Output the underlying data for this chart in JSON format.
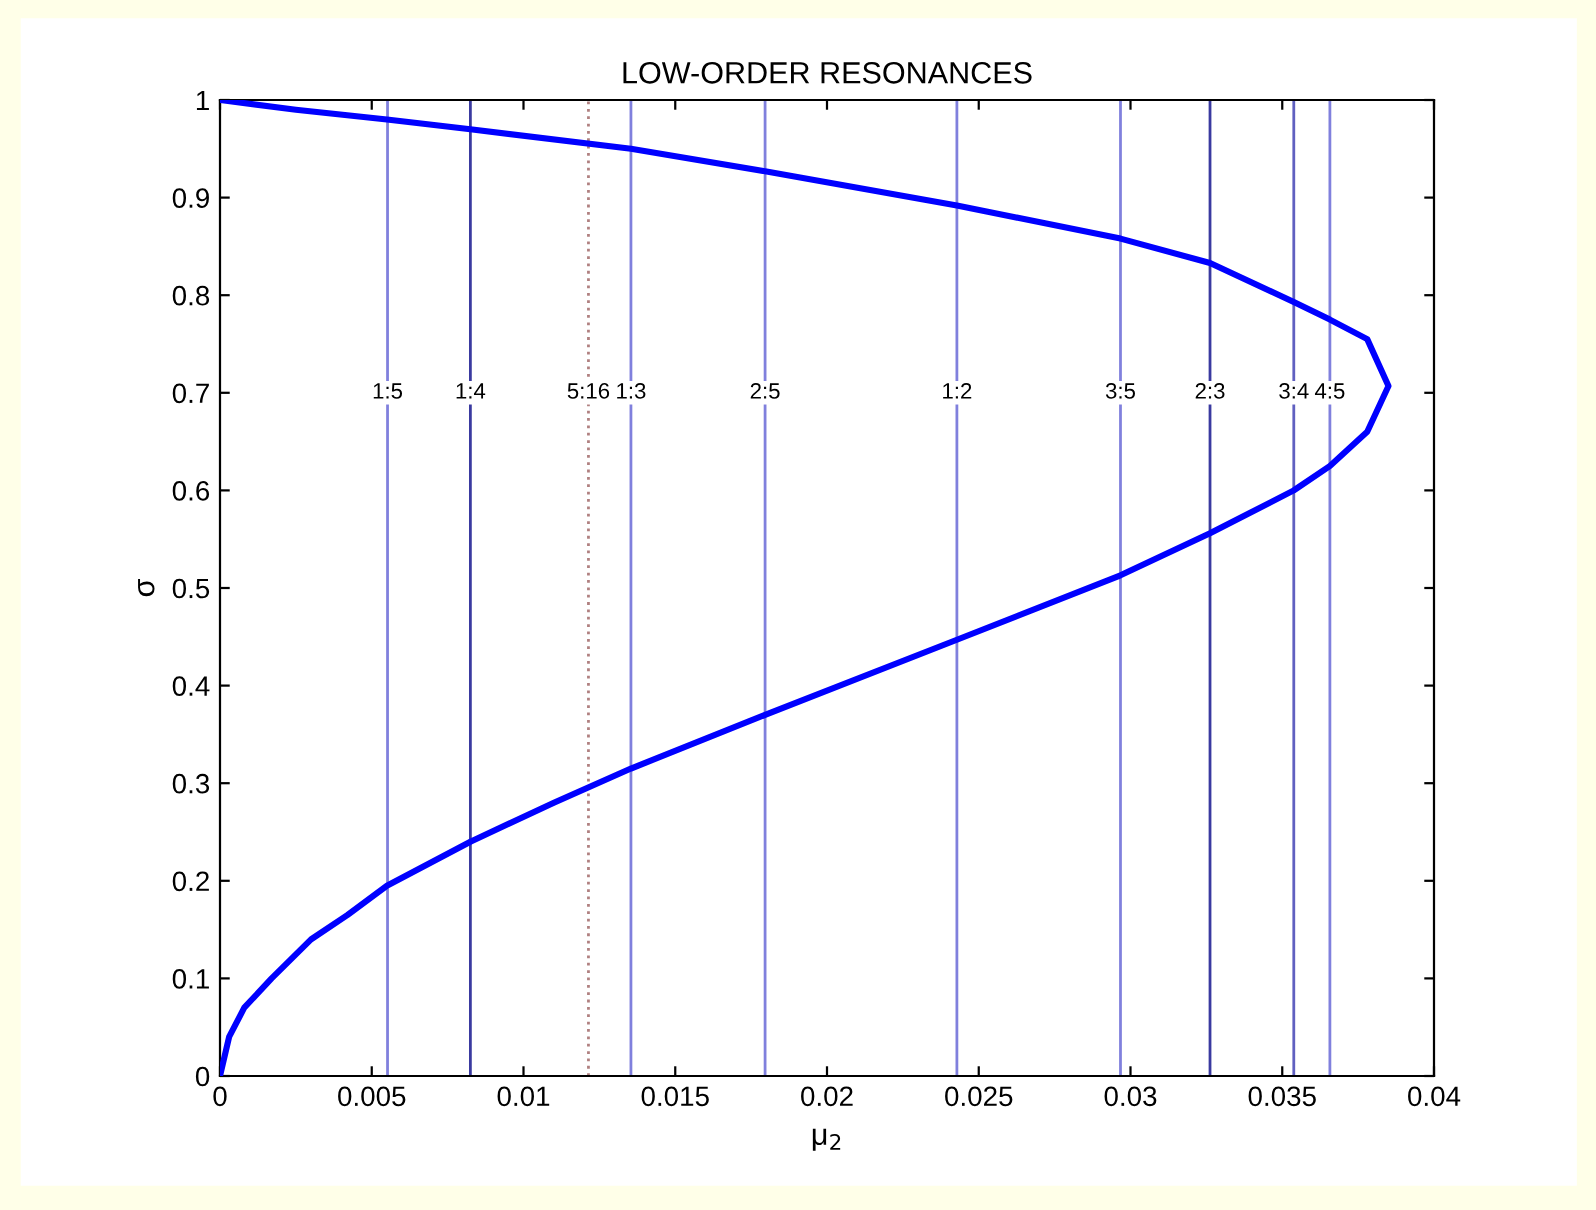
{
  "chart_data": {
    "type": "line",
    "title": "LOW-ORDER RESONANCES",
    "xlabel": "μ$_{2}$",
    "ylabel": "σ",
    "series": [
      {
        "color": "#0000ff",
        "x": [
          0,
          0.0003,
          0.0008,
          0.0017,
          0.003,
          0.0042,
          0.0055,
          0.00825,
          0.011,
          0.01354,
          0.01796,
          0.02428,
          0.02967,
          0.03262,
          0.03538,
          0.03657,
          0.0378,
          0.0385,
          0.0378,
          0.03657,
          0.03538,
          0.03262,
          0.02967,
          0.02428,
          0.01796,
          0.01354,
          0.00825,
          0.0055,
          0.0025,
          0
        ],
        "values": [
          0,
          0.04,
          0.07,
          0.1,
          0.14,
          0.165,
          0.195,
          0.24,
          0.28,
          0.315,
          0.37,
          0.447,
          0.513,
          0.556,
          0.6,
          0.625,
          0.66,
          0.707,
          0.755,
          0.775,
          0.793,
          0.833,
          0.858,
          0.892,
          0.927,
          0.95,
          0.97,
          0.98,
          0.99,
          1
        ]
      }
    ],
    "xlim": [
      0,
      0.04
    ],
    "ylim": [
      0,
      1
    ],
    "xticks": [
      0,
      0.005,
      0.01,
      0.015,
      0.02,
      0.025,
      0.03,
      0.035,
      0.04
    ],
    "yticks": [
      0,
      0.1,
      0.2,
      0.3,
      0.4,
      0.5,
      0.6,
      0.7,
      0.8,
      0.9,
      1
    ],
    "grid": false,
    "legend": false,
    "ref_lines": [
      {
        "axis": "x",
        "value": 0.00552,
        "color": "#8080dd"
      },
      {
        "axis": "x",
        "value": 0.00825,
        "color": "#3a3aa0"
      },
      {
        "axis": "x",
        "value": 0.01214,
        "color": "#b08080",
        "line_style": "dotted"
      },
      {
        "axis": "x",
        "value": 0.01354,
        "color": "#8080dd"
      },
      {
        "axis": "x",
        "value": 0.01796,
        "color": "#8080dd"
      },
      {
        "axis": "x",
        "value": 0.02428,
        "color": "#8080dd"
      },
      {
        "axis": "x",
        "value": 0.02967,
        "color": "#8080dd"
      },
      {
        "axis": "x",
        "value": 0.03262,
        "color": "#3a3aa0"
      },
      {
        "axis": "x",
        "value": 0.03538,
        "color": "#6060c0"
      },
      {
        "axis": "x",
        "value": 0.03657,
        "color": "#8080dd"
      }
    ],
    "annotations": [
      {
        "text": "1:5",
        "x": 0.00552,
        "y": 0.7
      },
      {
        "text": "1:4",
        "x": 0.00825,
        "y": 0.7
      },
      {
        "text": "5:16",
        "x": 0.01214,
        "y": 0.7
      },
      {
        "text": "1:3",
        "x": 0.01354,
        "y": 0.7
      },
      {
        "text": "2:5",
        "x": 0.01796,
        "y": 0.7
      },
      {
        "text": "1:2",
        "x": 0.02428,
        "y": 0.7
      },
      {
        "text": "3:5",
        "x": 0.02967,
        "y": 0.7
      },
      {
        "text": "2:3",
        "x": 0.03262,
        "y": 0.7
      },
      {
        "text": "3:4",
        "x": 0.03538,
        "y": 0.7
      },
      {
        "text": "4:5",
        "x": 0.03657,
        "y": 0.7
      }
    ]
  }
}
